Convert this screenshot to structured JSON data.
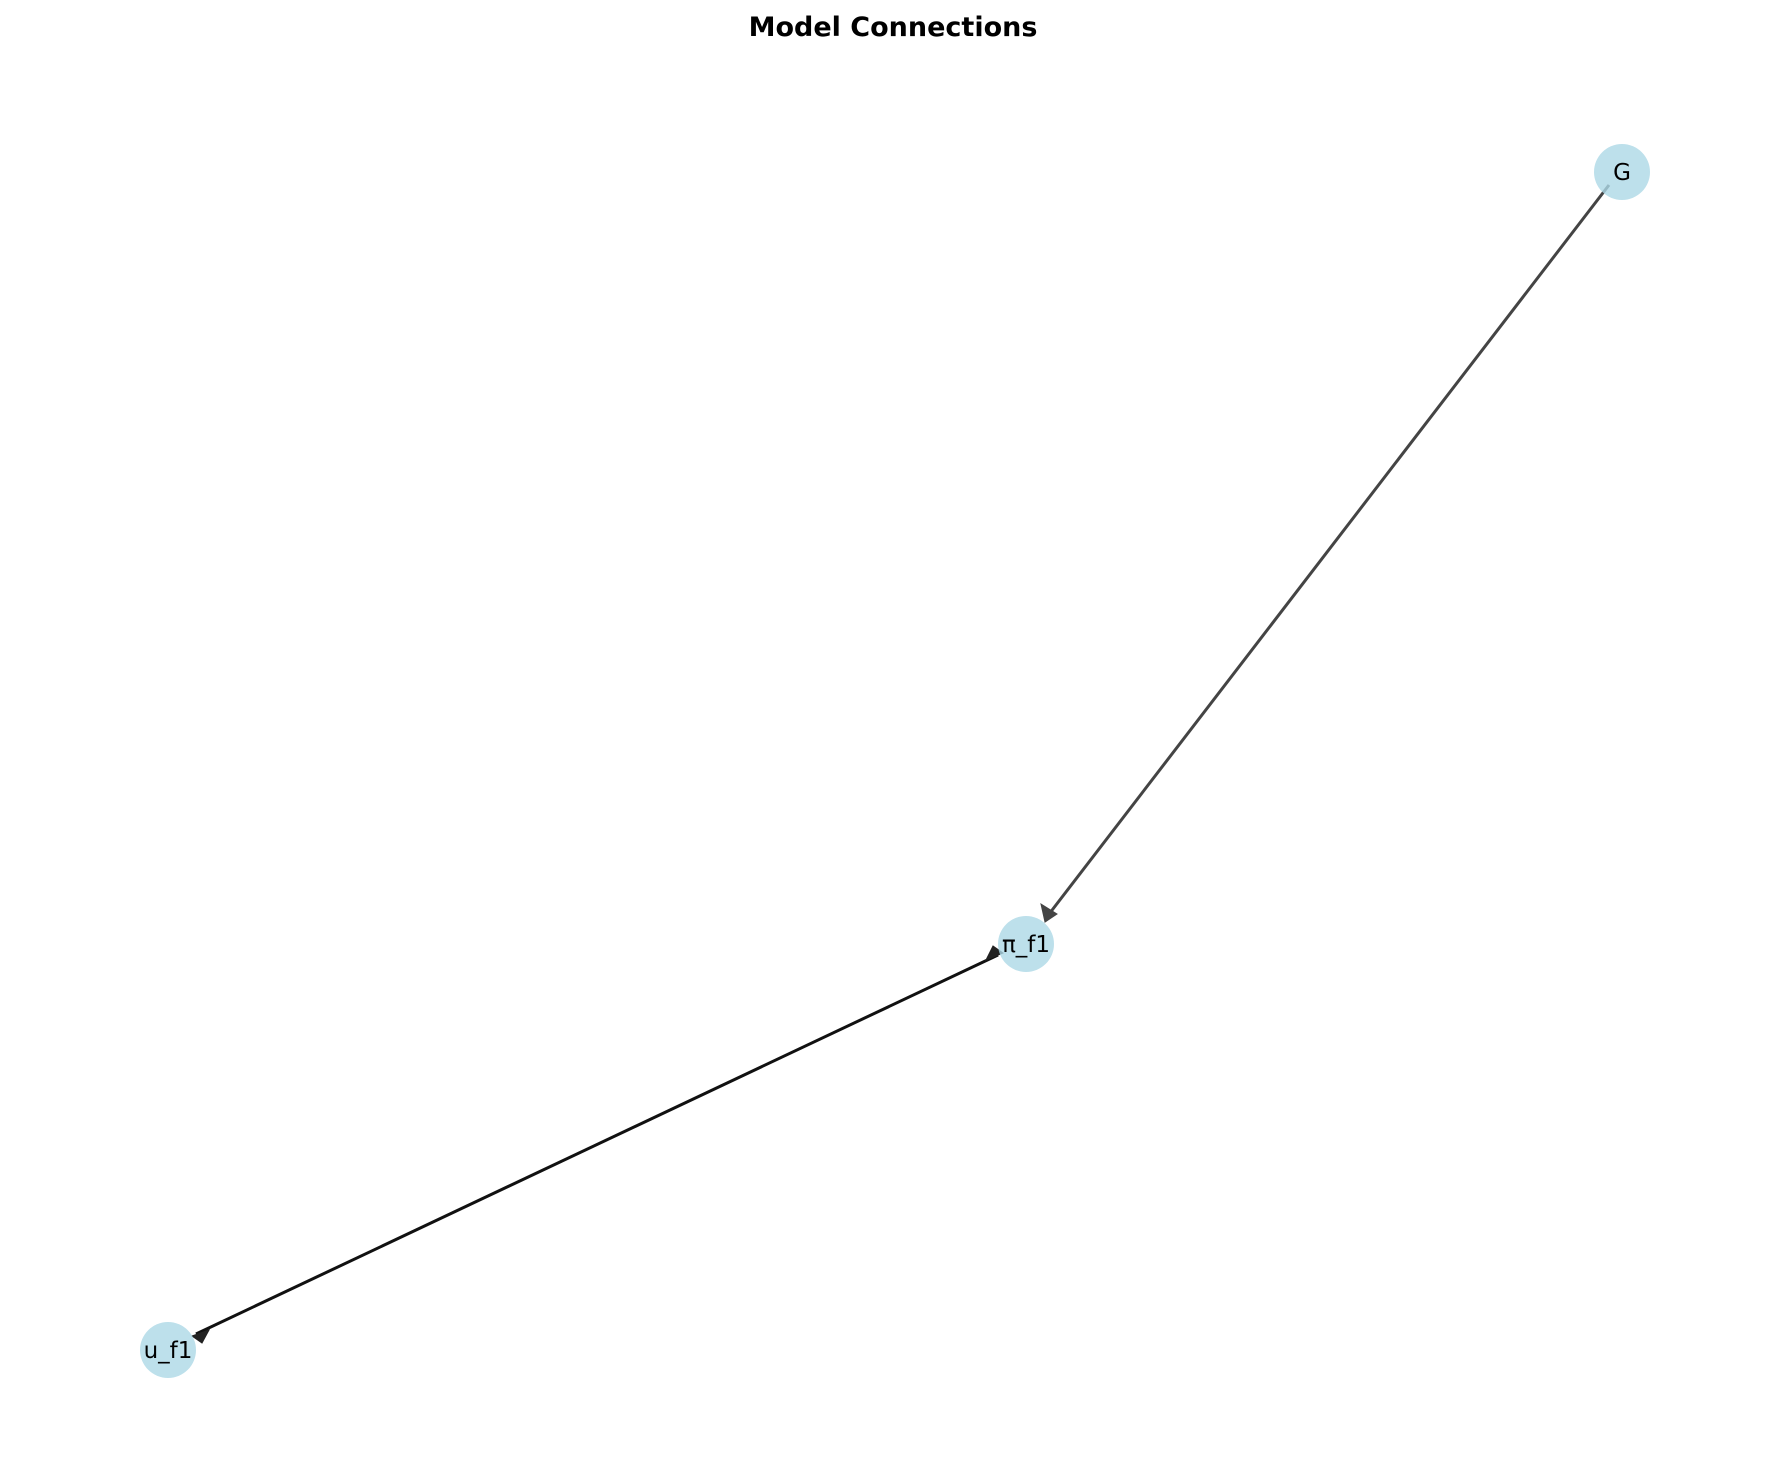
{
  "title": "Model Connections",
  "colors": {
    "node_fill": "#add8e6",
    "edge_gray": "#444444",
    "edge_dark": "#111111"
  },
  "nodes": [
    {
      "id": "G",
      "label": "G"
    },
    {
      "id": "pi_f1",
      "label": "π_f1"
    },
    {
      "id": "u_f1",
      "label": "u_f1"
    }
  ],
  "edges": [
    {
      "from": "G",
      "to": "pi_f1",
      "arrows": "to"
    },
    {
      "from": "u_f1",
      "to": "pi_f1",
      "arrows": "both"
    }
  ]
}
